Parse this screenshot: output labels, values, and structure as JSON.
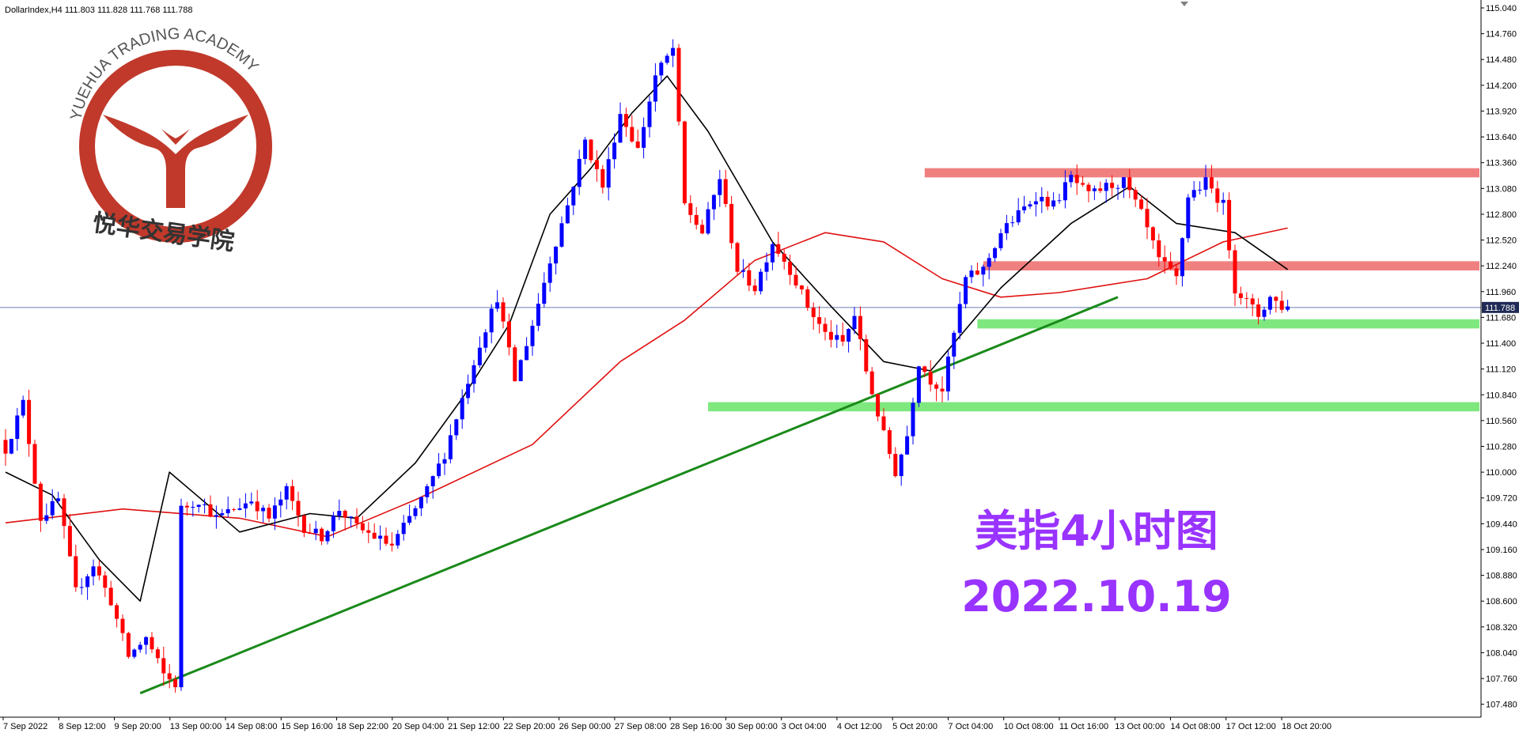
{
  "window": {
    "symbol_info": "DollarIndex,H4  111.803 111.828 111.768 111.788"
  },
  "logo": {
    "ring_text": "YUEHUA TRADING ACADEMY",
    "chinese_text": "悦华交易学院",
    "color": "#c0392b"
  },
  "annotation": {
    "title": "美指4小时图",
    "date": "2022.10.19",
    "color": "#9933ff"
  },
  "colors": {
    "bull": "#0000ff",
    "bear": "#ff0000",
    "ma_fast": "#000000",
    "ma_slow": "#e01010",
    "resistance": "#f08080",
    "support": "#7ee87e",
    "trendline": "#1a8a1a",
    "price_line": "#6b7fb3"
  },
  "chart_data": {
    "type": "candlestick",
    "ylim": [
      107.4,
      115.04
    ],
    "y_ticks": [
      "115.040",
      "114.760",
      "114.480",
      "114.200",
      "113.920",
      "113.640",
      "113.360",
      "113.080",
      "112.800",
      "112.520",
      "112.240",
      "111.960",
      "111.680",
      "111.400",
      "111.120",
      "110.840",
      "110.560",
      "110.280",
      "110.000",
      "109.720",
      "109.440",
      "109.160",
      "108.880",
      "108.600",
      "108.320",
      "108.040",
      "107.760",
      "107.480"
    ],
    "x_labels": [
      "7 Sep 2022",
      "8 Sep 12:00",
      "9 Sep 20:00",
      "13 Sep 00:00",
      "14 Sep 08:00",
      "15 Sep 16:00",
      "18 Sep 22:00",
      "20 Sep 04:00",
      "21 Sep 12:00",
      "22 Sep 20:00",
      "26 Sep 00:00",
      "27 Sep 08:00",
      "28 Sep 16:00",
      "30 Sep 00:00",
      "3 Oct 04:00",
      "4 Oct 12:00",
      "5 Oct 20:00",
      "7 Oct 04:00",
      "10 Oct 08:00",
      "11 Oct 16:00",
      "13 Oct 00:00",
      "14 Oct 08:00",
      "17 Oct 12:00",
      "18 Oct 20:00"
    ],
    "current_price": 111.788,
    "current_price_label": "111.788",
    "close_anchors": [
      [
        0,
        110.25
      ],
      [
        3,
        110.75
      ],
      [
        6,
        109.5
      ],
      [
        9,
        109.7
      ],
      [
        12,
        108.7
      ],
      [
        15,
        109.0
      ],
      [
        18,
        108.6
      ],
      [
        21,
        108.0
      ],
      [
        24,
        108.2
      ],
      [
        27,
        107.8
      ],
      [
        29,
        107.7
      ],
      [
        30,
        109.6
      ],
      [
        33,
        109.7
      ],
      [
        36,
        109.5
      ],
      [
        39,
        109.6
      ],
      [
        42,
        109.7
      ],
      [
        45,
        109.5
      ],
      [
        48,
        109.8
      ],
      [
        51,
        109.4
      ],
      [
        54,
        109.3
      ],
      [
        57,
        109.6
      ],
      [
        60,
        109.4
      ],
      [
        63,
        109.3
      ],
      [
        66,
        109.2
      ],
      [
        69,
        109.5
      ],
      [
        72,
        109.8
      ],
      [
        75,
        110.2
      ],
      [
        78,
        110.8
      ],
      [
        81,
        111.4
      ],
      [
        84,
        111.9
      ],
      [
        87,
        111.0
      ],
      [
        90,
        111.6
      ],
      [
        93,
        112.3
      ],
      [
        96,
        112.9
      ],
      [
        99,
        113.6
      ],
      [
        102,
        113.1
      ],
      [
        105,
        113.9
      ],
      [
        108,
        113.5
      ],
      [
        111,
        114.3
      ],
      [
        114,
        114.6
      ],
      [
        116,
        112.9
      ],
      [
        119,
        112.6
      ],
      [
        122,
        113.2
      ],
      [
        125,
        112.2
      ],
      [
        128,
        112.0
      ],
      [
        131,
        112.5
      ],
      [
        134,
        112.2
      ],
      [
        137,
        111.8
      ],
      [
        140,
        111.5
      ],
      [
        143,
        111.4
      ],
      [
        145,
        111.7
      ],
      [
        147,
        111.1
      ],
      [
        150,
        110.4
      ],
      [
        152,
        110.0
      ],
      [
        154,
        110.4
      ],
      [
        156,
        111.2
      ],
      [
        158,
        111.0
      ],
      [
        160,
        110.9
      ],
      [
        162,
        111.5
      ],
      [
        164,
        112.1
      ],
      [
        167,
        112.2
      ],
      [
        170,
        112.6
      ],
      [
        173,
        112.8
      ],
      [
        176,
        113.0
      ],
      [
        179,
        112.9
      ],
      [
        182,
        113.2
      ],
      [
        185,
        113.0
      ],
      [
        188,
        113.1
      ],
      [
        191,
        113.15
      ],
      [
        194,
        112.8
      ],
      [
        197,
        112.3
      ],
      [
        200,
        112.1
      ],
      [
        202,
        113.0
      ],
      [
        205,
        113.15
      ],
      [
        208,
        112.9
      ],
      [
        210,
        112.0
      ],
      [
        212,
        111.85
      ],
      [
        214,
        111.7
      ],
      [
        216,
        111.9
      ],
      [
        218,
        111.8
      ],
      [
        219,
        111.788
      ]
    ],
    "sma_fast": [
      [
        0,
        110.0
      ],
      [
        8,
        109.75
      ],
      [
        16,
        109.05
      ],
      [
        23,
        108.6
      ],
      [
        28,
        110.0
      ],
      [
        40,
        109.35
      ],
      [
        52,
        109.55
      ],
      [
        60,
        109.5
      ],
      [
        70,
        110.1
      ],
      [
        78,
        110.8
      ],
      [
        86,
        111.6
      ],
      [
        93,
        112.8
      ],
      [
        100,
        113.3
      ],
      [
        107,
        113.9
      ],
      [
        113,
        114.3
      ],
      [
        120,
        113.7
      ],
      [
        131,
        112.5
      ],
      [
        141,
        111.8
      ],
      [
        150,
        111.2
      ],
      [
        158,
        111.1
      ],
      [
        170,
        112.0
      ],
      [
        182,
        112.7
      ],
      [
        192,
        113.1
      ],
      [
        200,
        112.7
      ],
      [
        210,
        112.6
      ],
      [
        219,
        112.2
      ]
    ],
    "sma_slow": [
      [
        0,
        109.45
      ],
      [
        20,
        109.6
      ],
      [
        40,
        109.5
      ],
      [
        55,
        109.3
      ],
      [
        70,
        109.7
      ],
      [
        90,
        110.3
      ],
      [
        105,
        111.2
      ],
      [
        116,
        111.65
      ],
      [
        128,
        112.3
      ],
      [
        140,
        112.6
      ],
      [
        150,
        112.5
      ],
      [
        160,
        112.1
      ],
      [
        170,
        111.9
      ],
      [
        180,
        111.95
      ],
      [
        195,
        112.1
      ],
      [
        208,
        112.5
      ],
      [
        219,
        112.65
      ]
    ],
    "trendline": {
      "start": [
        23,
        107.6
      ],
      "end": [
        190,
        111.9
      ]
    },
    "resistance_zones": [
      {
        "from_bar": 157,
        "y_top": 113.3,
        "y_bottom": 113.2
      },
      {
        "from_bar": 167,
        "y_top": 112.29,
        "y_bottom": 112.19
      }
    ],
    "support_zones": [
      {
        "from_bar": 166,
        "y_top": 111.66,
        "y_bottom": 111.56
      },
      {
        "from_bar": 120,
        "y_top": 110.76,
        "y_bottom": 110.66
      }
    ],
    "bar_count": 220
  }
}
